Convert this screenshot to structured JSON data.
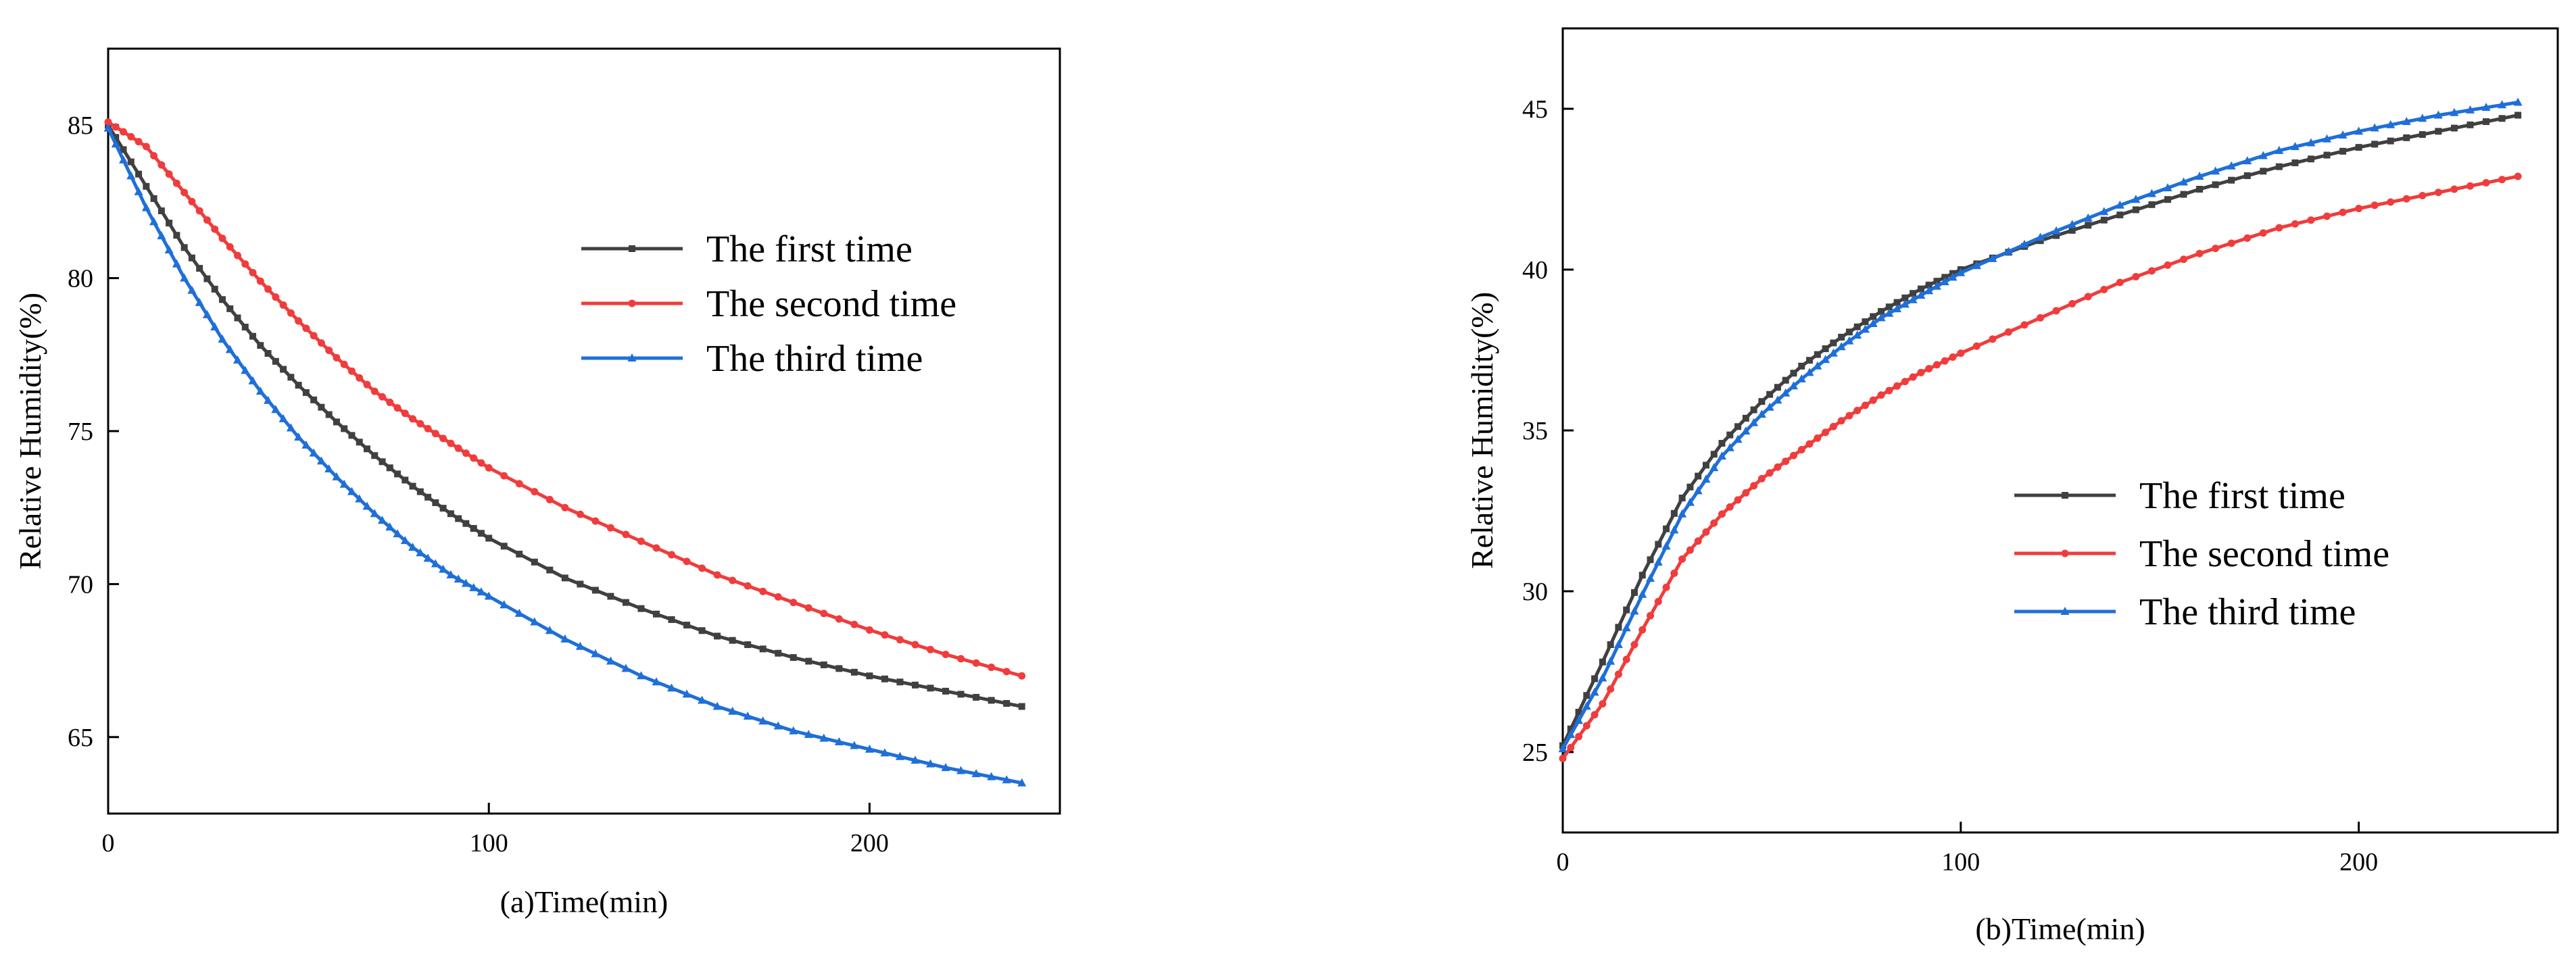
{
  "chart_data": [
    {
      "type": "line",
      "panel": "a",
      "title": "",
      "xlabel": "(a)Time(min)",
      "ylabel": "Relative Humidity(%)",
      "xlim": [
        0,
        250
      ],
      "ylim": [
        62.5,
        87.5
      ],
      "xticks": [
        0,
        100,
        200
      ],
      "yticks": [
        65,
        70,
        75,
        80,
        85
      ],
      "grid": false,
      "legend_position": "top-right",
      "x": [
        0,
        10,
        20,
        30,
        40,
        50,
        60,
        70,
        80,
        90,
        100,
        120,
        140,
        160,
        180,
        200,
        220,
        240
      ],
      "series": [
        {
          "name": "The first time",
          "color": "#404040",
          "marker": "square",
          "values": [
            85.0,
            83.0,
            81.0,
            79.3,
            77.8,
            76.5,
            75.3,
            74.2,
            73.2,
            72.3,
            71.5,
            70.2,
            69.2,
            68.3,
            67.6,
            67.0,
            66.5,
            66.0
          ]
        },
        {
          "name": "The second time",
          "color": "#f03c3c",
          "marker": "circle",
          "values": [
            85.1,
            84.3,
            82.8,
            81.3,
            79.9,
            78.6,
            77.4,
            76.3,
            75.4,
            74.6,
            73.8,
            72.5,
            71.4,
            70.3,
            69.4,
            68.5,
            67.7,
            67.0
          ]
        },
        {
          "name": "The third time",
          "color": "#1f6fd8",
          "marker": "triangle",
          "values": [
            84.9,
            82.3,
            80.0,
            78.0,
            76.3,
            74.8,
            73.5,
            72.3,
            71.2,
            70.3,
            69.6,
            68.2,
            67.0,
            66.0,
            65.2,
            64.6,
            64.0,
            63.5
          ]
        }
      ]
    },
    {
      "type": "line",
      "panel": "b",
      "title": "",
      "xlabel": "(b)Time(min)",
      "ylabel": "Relative Humidity(%)",
      "xlim": [
        0,
        250
      ],
      "ylim": [
        22.5,
        47.5
      ],
      "xticks": [
        0,
        100,
        200
      ],
      "yticks": [
        25,
        30,
        35,
        40,
        45
      ],
      "grid": false,
      "legend_position": "center-right",
      "x": [
        0,
        10,
        20,
        30,
        40,
        50,
        60,
        70,
        80,
        90,
        100,
        120,
        140,
        160,
        180,
        200,
        220,
        240
      ],
      "series": [
        {
          "name": "The first time",
          "color": "#404040",
          "marker": "square",
          "values": [
            25.2,
            27.8,
            30.5,
            32.9,
            34.6,
            35.9,
            37.0,
            37.9,
            38.7,
            39.4,
            40.0,
            40.9,
            41.7,
            42.5,
            43.2,
            43.8,
            44.3,
            44.8
          ]
        },
        {
          "name": "The second time",
          "color": "#f03c3c",
          "marker": "circle",
          "values": [
            24.8,
            26.5,
            28.8,
            31.0,
            32.4,
            33.5,
            34.4,
            35.3,
            36.1,
            36.8,
            37.4,
            38.5,
            39.6,
            40.5,
            41.3,
            41.9,
            42.4,
            42.9
          ]
        },
        {
          "name": "The third time",
          "color": "#1f6fd8",
          "marker": "triangle",
          "values": [
            25.1,
            27.3,
            29.9,
            32.4,
            34.2,
            35.5,
            36.6,
            37.6,
            38.5,
            39.2,
            39.9,
            41.0,
            42.0,
            42.9,
            43.7,
            44.3,
            44.8,
            45.2
          ]
        }
      ]
    }
  ]
}
